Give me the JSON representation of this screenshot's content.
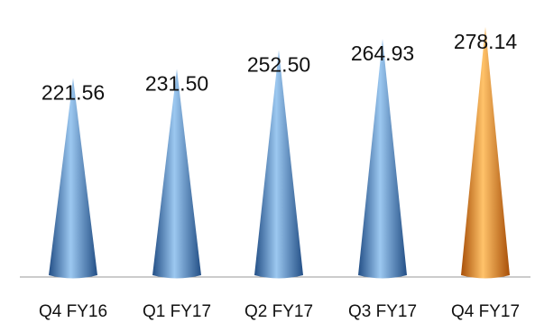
{
  "chart_data": {
    "type": "bar",
    "bar_shape": "cone",
    "categories": [
      "Q4 FY16",
      "Q1 FY17",
      "Q2 FY17",
      "Q3 FY17",
      "Q4 FY17"
    ],
    "values": [
      221.56,
      231.5,
      252.5,
      264.93,
      278.14
    ],
    "value_labels": [
      "221.56",
      "231.50",
      "252.50",
      "264.93",
      "278.14"
    ],
    "ylim": [
      0,
      278.14
    ],
    "grid": false,
    "legend": "none",
    "title": "",
    "xlabel": "",
    "ylabel": "",
    "colors": {
      "default": "#4f8fd0",
      "default_light": "#9cc8f0",
      "default_dark": "#234f86",
      "highlight": "#f08a20",
      "highlight_light": "#ffc36a",
      "highlight_dark": "#a84f08",
      "axis": "#9a9a9a"
    },
    "highlight_index": 4
  }
}
